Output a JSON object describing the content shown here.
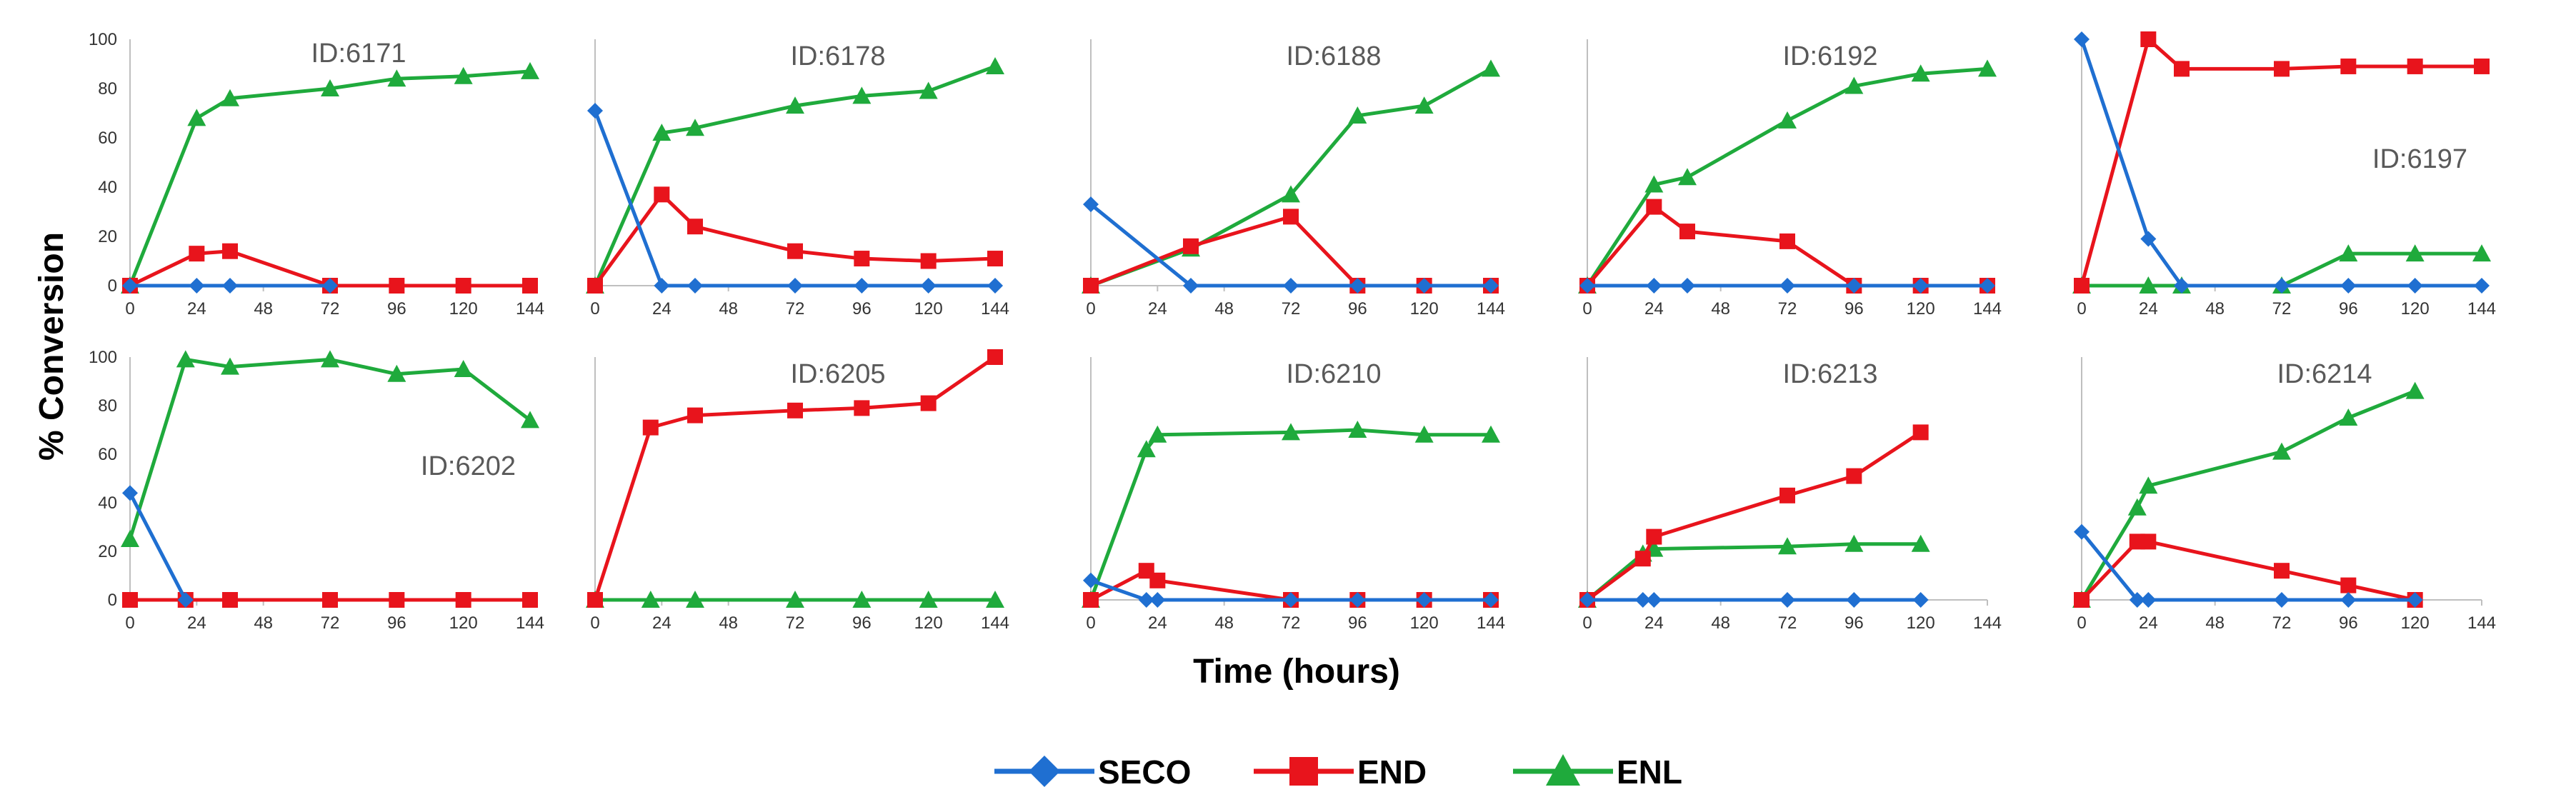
{
  "chart_data": {
    "type": "line",
    "ylabel": "% Conversion",
    "xlabel": "Time (hours)",
    "ylim": [
      0,
      100
    ],
    "yticks": [
      0,
      20,
      40,
      60,
      80,
      100
    ],
    "legend": {
      "placement": "bottom-center",
      "entries": [
        {
          "name": "SECO",
          "color": "#1f6fd1",
          "marker": "diamond"
        },
        {
          "name": "END",
          "color": "#e8141c",
          "marker": "square"
        },
        {
          "name": "ENL",
          "color": "#1faa3c",
          "marker": "triangle"
        }
      ]
    },
    "panels": [
      {
        "title": "ID:6171",
        "title_pos": "top-left",
        "xticks": [
          0,
          24,
          48,
          72,
          96,
          120,
          144
        ],
        "series": [
          {
            "name": "SECO",
            "x": [
              0,
              24,
              36,
              72
            ],
            "y": [
              0,
              0,
              0,
              0
            ]
          },
          {
            "name": "END",
            "x": [
              0,
              24,
              36,
              72,
              96,
              120,
              144
            ],
            "y": [
              0,
              13,
              14,
              0,
              0,
              0,
              0
            ]
          },
          {
            "name": "ENL",
            "x": [
              0,
              24,
              36,
              72,
              96,
              120,
              144
            ],
            "y": [
              0,
              68,
              76,
              80,
              84,
              85,
              87
            ]
          }
        ]
      },
      {
        "title": "ID:6178",
        "title_pos": "top-center",
        "xticks": [
          0,
          24,
          48,
          72,
          96,
          120,
          144
        ],
        "series": [
          {
            "name": "SECO",
            "x": [
              0,
              24,
              36,
              72,
              96,
              120,
              144
            ],
            "y": [
              71,
              0,
              0,
              0,
              0,
              0,
              0
            ]
          },
          {
            "name": "END",
            "x": [
              0,
              24,
              36,
              72,
              96,
              120,
              144
            ],
            "y": [
              0,
              37,
              24,
              14,
              11,
              10,
              11
            ]
          },
          {
            "name": "ENL",
            "x": [
              0,
              24,
              36,
              72,
              96,
              120,
              144
            ],
            "y": [
              0,
              62,
              64,
              73,
              77,
              79,
              89
            ]
          }
        ]
      },
      {
        "title": "ID:6188",
        "title_pos": "top-center",
        "xticks": [
          0,
          24,
          48,
          72,
          96,
          120,
          144
        ],
        "series": [
          {
            "name": "SECO",
            "x": [
              0,
              36,
              72,
              96,
              120,
              144
            ],
            "y": [
              33,
              0,
              0,
              0,
              0,
              0
            ]
          },
          {
            "name": "END",
            "x": [
              0,
              36,
              72,
              96,
              120,
              144
            ],
            "y": [
              0,
              16,
              28,
              0,
              0,
              0
            ]
          },
          {
            "name": "ENL",
            "x": [
              0,
              36,
              72,
              96,
              120,
              144
            ],
            "y": [
              0,
              15,
              37,
              69,
              73,
              88
            ]
          }
        ]
      },
      {
        "title": "ID:6192",
        "title_pos": "top-center",
        "xticks": [
          0,
          24,
          48,
          72,
          96,
          120,
          144
        ],
        "series": [
          {
            "name": "SECO",
            "x": [
              0,
              24,
              36,
              72,
              96,
              120,
              144
            ],
            "y": [
              0,
              0,
              0,
              0,
              0,
              0,
              0
            ]
          },
          {
            "name": "END",
            "x": [
              0,
              24,
              36,
              72,
              96,
              120,
              144
            ],
            "y": [
              0,
              32,
              22,
              18,
              0,
              0,
              0
            ]
          },
          {
            "name": "ENL",
            "x": [
              0,
              24,
              36,
              72,
              96,
              120,
              144
            ],
            "y": [
              0,
              41,
              44,
              67,
              81,
              86,
              88
            ]
          }
        ]
      },
      {
        "title": "ID:6197",
        "title_pos": "right",
        "xticks": [
          0,
          24,
          48,
          72,
          96,
          120,
          144
        ],
        "series": [
          {
            "name": "SECO",
            "x": [
              0,
              24,
              36,
              72,
              96,
              120,
              144
            ],
            "y": [
              100,
              19,
              0,
              0,
              0,
              0,
              0
            ]
          },
          {
            "name": "END",
            "x": [
              0,
              24,
              36,
              72,
              96,
              120,
              144
            ],
            "y": [
              0,
              100,
              88,
              88,
              89,
              89,
              89
            ]
          },
          {
            "name": "ENL",
            "x": [
              0,
              24,
              36,
              72,
              96,
              120,
              144
            ],
            "y": [
              0,
              0,
              0,
              0,
              13,
              13,
              13
            ]
          }
        ]
      },
      {
        "title": "ID:6202",
        "title_pos": "right",
        "xticks": [
          0,
          24,
          48,
          72,
          96,
          120,
          144
        ],
        "series": [
          {
            "name": "SECO",
            "x": [
              0,
              20
            ],
            "y": [
              44,
              0
            ]
          },
          {
            "name": "END",
            "x": [
              0,
              20,
              36,
              72,
              96,
              120,
              144
            ],
            "y": [
              0,
              0,
              0,
              0,
              0,
              0,
              0
            ]
          },
          {
            "name": "ENL",
            "x": [
              0,
              20,
              36,
              72,
              96,
              120,
              144
            ],
            "y": [
              25,
              99,
              96,
              99,
              93,
              95,
              74
            ]
          }
        ]
      },
      {
        "title": "ID:6205",
        "title_pos": "top-center",
        "xticks": [
          0,
          24,
          48,
          72,
          96,
          120,
          144
        ],
        "series": [
          {
            "name": "END",
            "x": [
              0,
              20,
              36,
              72,
              96,
              120,
              144
            ],
            "y": [
              0,
              71,
              76,
              78,
              79,
              81,
              100
            ]
          },
          {
            "name": "ENL",
            "x": [
              0,
              20,
              36,
              72,
              96,
              120,
              144
            ],
            "y": [
              0,
              0,
              0,
              0,
              0,
              0,
              0
            ]
          }
        ]
      },
      {
        "title": "ID:6210",
        "title_pos": "top-center",
        "xticks": [
          0,
          24,
          48,
          72,
          96,
          120,
          144
        ],
        "series": [
          {
            "name": "SECO",
            "x": [
              0,
              20,
              24,
              72,
              96,
              120,
              144
            ],
            "y": [
              8,
              0,
              0,
              0,
              0,
              0,
              0
            ]
          },
          {
            "name": "END",
            "x": [
              0,
              20,
              24,
              72,
              96,
              120,
              144
            ],
            "y": [
              0,
              12,
              8,
              0,
              0,
              0,
              0
            ]
          },
          {
            "name": "ENL",
            "x": [
              0,
              20,
              24,
              72,
              96,
              120,
              144
            ],
            "y": [
              0,
              62,
              68,
              69,
              70,
              68,
              68
            ]
          }
        ]
      },
      {
        "title": "ID:6213",
        "title_pos": "top-center",
        "xticks": [
          0,
          24,
          48,
          72,
          96,
          120,
          144
        ],
        "series": [
          {
            "name": "SECO",
            "x": [
              0,
              20,
              24,
              72,
              96,
              120
            ],
            "y": [
              0,
              0,
              0,
              0,
              0,
              0
            ]
          },
          {
            "name": "END",
            "x": [
              0,
              20,
              24,
              72,
              96,
              120
            ],
            "y": [
              0,
              17,
              26,
              43,
              51,
              69
            ]
          },
          {
            "name": "ENL",
            "x": [
              0,
              20,
              24,
              72,
              96,
              120
            ],
            "y": [
              0,
              19,
              21,
              22,
              23,
              23
            ]
          }
        ]
      },
      {
        "title": "ID:6214",
        "title_pos": "top-center",
        "xticks": [
          0,
          24,
          48,
          72,
          96,
          120,
          144
        ],
        "series": [
          {
            "name": "SECO",
            "x": [
              0,
              20,
              24,
              72,
              96,
              120
            ],
            "y": [
              28,
              0,
              0,
              0,
              0,
              0
            ]
          },
          {
            "name": "END",
            "x": [
              0,
              20,
              24,
              72,
              96,
              120
            ],
            "y": [
              0,
              24,
              24,
              12,
              6,
              0
            ]
          },
          {
            "name": "ENL",
            "x": [
              0,
              20,
              24,
              72,
              96,
              120
            ],
            "y": [
              0,
              38,
              47,
              61,
              75,
              86
            ]
          }
        ]
      }
    ]
  }
}
